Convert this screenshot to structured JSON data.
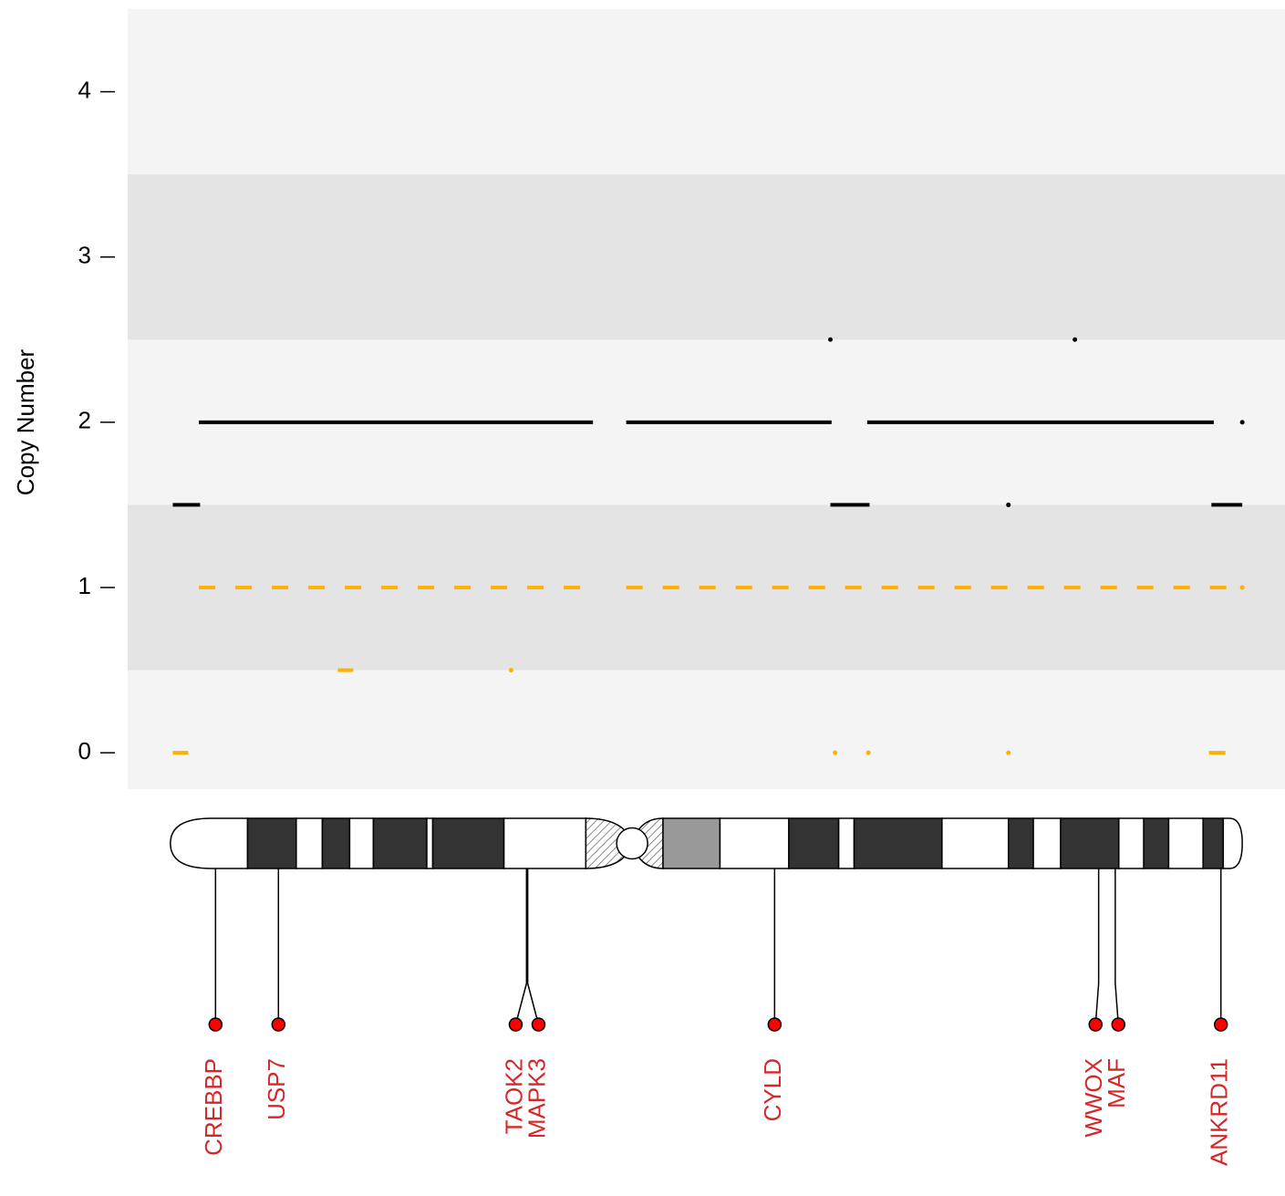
{
  "chart_data": {
    "type": "copy-number",
    "y_label": "Copy Number",
    "ylim": [
      -0.22,
      4.5
    ],
    "yticks": [
      0,
      1,
      2,
      3,
      4
    ],
    "xlim": [
      -3.6,
      93.9
    ],
    "shading": [
      [
        0.5,
        1.5
      ],
      [
        2.5,
        3.5
      ]
    ],
    "series": [
      {
        "color": "#000000",
        "dashed": false,
        "starts": [
          0.2,
          2.4,
          38.4,
          55.6,
          55.6,
          58.7,
          76.2,
          70.6,
          87.7,
          90.3
        ],
        "ends": [
          2.5,
          35.6,
          55.7,
          55.6,
          58.9,
          87.9,
          76.2,
          70.6,
          90.3,
          90.3
        ],
        "values": [
          1.5,
          2,
          2,
          2.5,
          1.5,
          2,
          2.5,
          1.5,
          1.5,
          2
        ]
      },
      {
        "color": "#ffb000",
        "dashed": true,
        "starts": [
          0.2,
          2.4,
          14.1,
          28.7,
          38.4,
          56.0,
          58.8,
          70.6,
          87.5,
          90.3
        ],
        "ends": [
          1.5,
          35.6,
          15.4,
          28.7,
          89.0,
          56.0,
          58.8,
          70.6,
          89.0,
          90.3
        ],
        "values": [
          0,
          1,
          0.5,
          0.5,
          1,
          0,
          0,
          0,
          0,
          1
        ]
      }
    ],
    "ideogram": {
      "bands": [
        {
          "start": 0,
          "end": 6.5,
          "stain": "gneg"
        },
        {
          "start": 6.5,
          "end": 10.6,
          "stain": "gpos"
        },
        {
          "start": 10.6,
          "end": 12.8,
          "stain": "gneg"
        },
        {
          "start": 12.8,
          "end": 15.1,
          "stain": "gpos"
        },
        {
          "start": 15.1,
          "end": 17.1,
          "stain": "gneg"
        },
        {
          "start": 17.1,
          "end": 21.6,
          "stain": "gpos"
        },
        {
          "start": 21.6,
          "end": 22.1,
          "stain": "gneg"
        },
        {
          "start": 22.1,
          "end": 28.1,
          "stain": "gpos"
        },
        {
          "start": 28.1,
          "end": 35.0,
          "stain": "gneg"
        },
        {
          "start": 35.0,
          "end": 38.9,
          "stain": "acen"
        },
        {
          "start": 38.9,
          "end": 41.5,
          "stain": "acen"
        },
        {
          "start": 41.5,
          "end": 46.3,
          "stain": "gvar"
        },
        {
          "start": 46.3,
          "end": 52.1,
          "stain": "gneg"
        },
        {
          "start": 52.1,
          "end": 56.3,
          "stain": "gpos"
        },
        {
          "start": 56.3,
          "end": 57.6,
          "stain": "gneg"
        },
        {
          "start": 57.6,
          "end": 65.0,
          "stain": "gpos"
        },
        {
          "start": 65.0,
          "end": 70.6,
          "stain": "gneg"
        },
        {
          "start": 70.6,
          "end": 72.7,
          "stain": "gpos"
        },
        {
          "start": 72.7,
          "end": 75.0,
          "stain": "gneg"
        },
        {
          "start": 75.0,
          "end": 79.9,
          "stain": "gpos"
        },
        {
          "start": 79.9,
          "end": 82.0,
          "stain": "gneg"
        },
        {
          "start": 82.0,
          "end": 84.1,
          "stain": "gpos"
        },
        {
          "start": 84.1,
          "end": 87.0,
          "stain": "gneg"
        },
        {
          "start": 87.0,
          "end": 88.7,
          "stain": "gpos"
        },
        {
          "start": 88.7,
          "end": 90.3,
          "stain": "gneg"
        }
      ],
      "centromere": 38.9
    },
    "genes": {
      "names": [
        "CREBBP",
        "USP7",
        "TAOK2",
        "MAPK3",
        "CYLD",
        "WWOX",
        "MAF",
        "ANKRD11"
      ],
      "positions": [
        3.8,
        9.1,
        30.0,
        30.1,
        50.9,
        78.2,
        79.6,
        88.5
      ],
      "color": "#d62728"
    }
  }
}
